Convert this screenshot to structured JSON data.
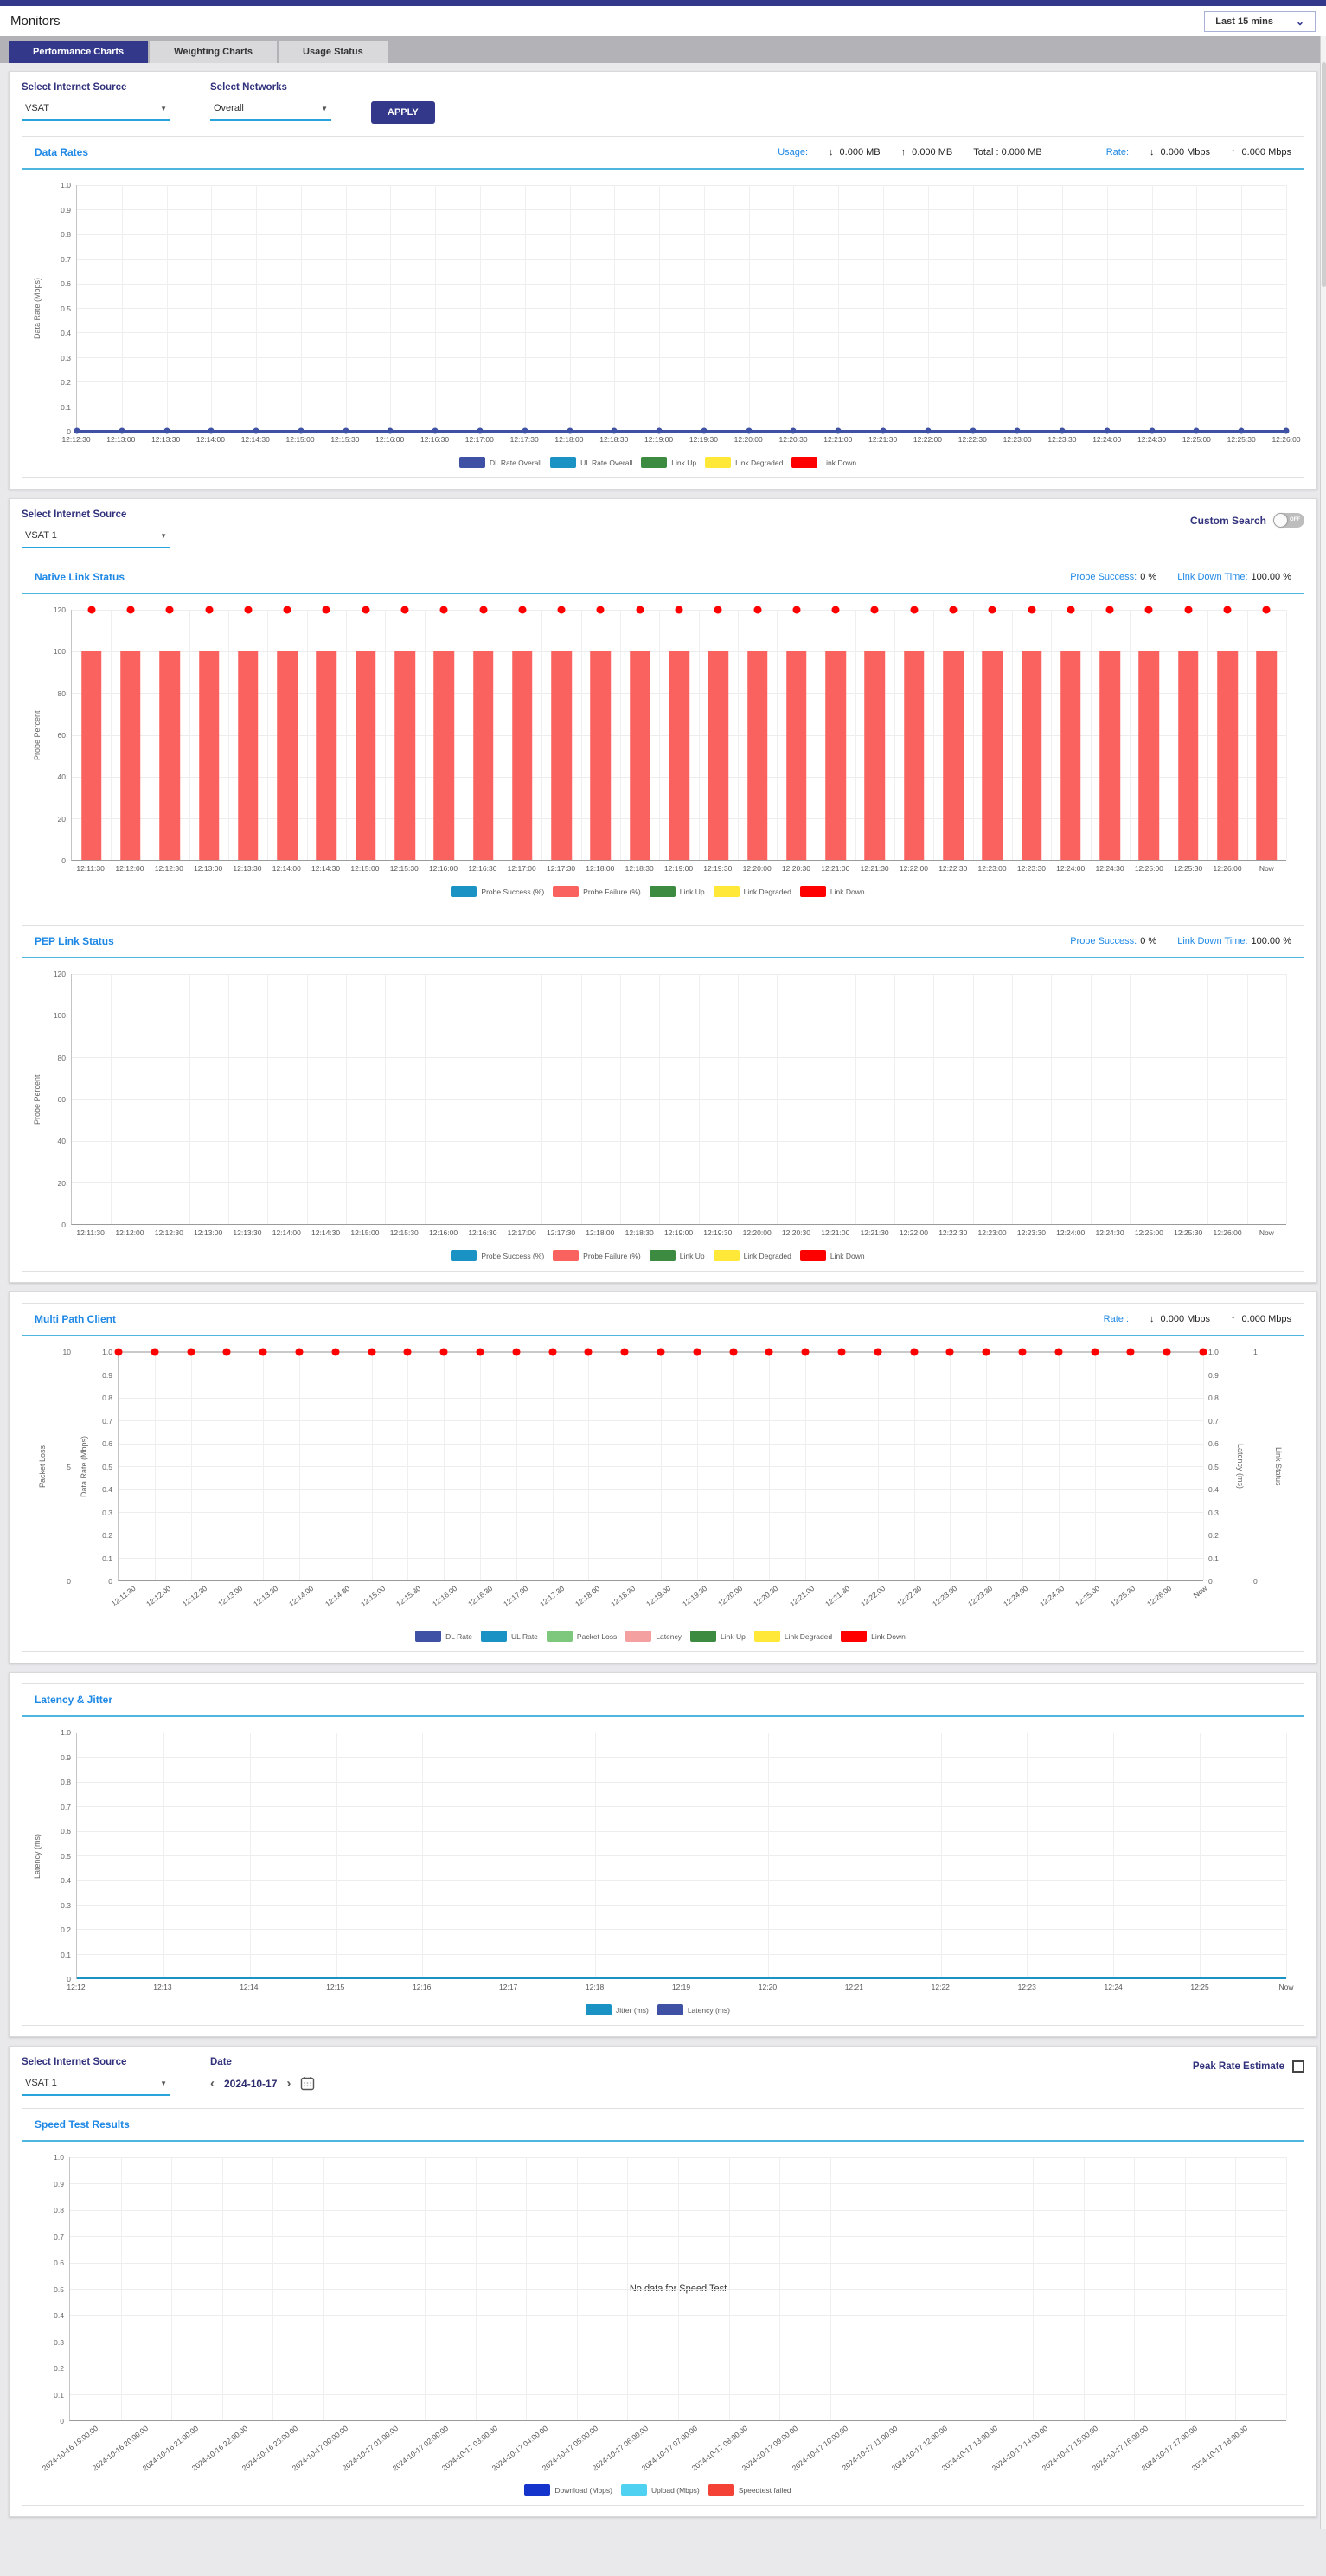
{
  "icons": {
    "down_arrow": "↓",
    "up_arrow": "↑",
    "dropdown": "▼",
    "chevron_left": "‹",
    "chevron_right": "›",
    "chevron_down": "⌄"
  },
  "header": {
    "title": "Monitors",
    "time_range": "Last 15 mins"
  },
  "tabs": [
    {
      "label": "Performance Charts",
      "active": true
    },
    {
      "label": "Weighting Charts",
      "active": false
    },
    {
      "label": "Usage Status",
      "active": false
    }
  ],
  "controls1": {
    "source_label": "Select Internet Source",
    "source_value": "VSAT",
    "networks_label": "Select Networks",
    "networks_value": "Overall",
    "apply_label": "APPLY"
  },
  "data_rates_stats": {
    "usage_label": "Usage:",
    "usage_down": "0.000 MB",
    "usage_up": "0.000 MB",
    "usage_total": "Total : 0.000 MB",
    "rate_label": "Rate:",
    "rate_down": "0.000 Mbps",
    "rate_up": "0.000 Mbps"
  },
  "controls2": {
    "source_label": "Select Internet Source",
    "source_value": "VSAT 1",
    "custom_search_label": "Custom Search",
    "custom_search_state": "OFF"
  },
  "native_link_stats": {
    "probe_label": "Probe Success:",
    "probe_value": "0 %",
    "down_label": "Link Down Time:",
    "down_value": "100.00 %"
  },
  "pep_link_stats": {
    "probe_label": "Probe Success:",
    "probe_value": "0 %",
    "down_label": "Link Down Time:",
    "down_value": "100.00 %"
  },
  "multi_path_stats": {
    "rate_label": "Rate :",
    "rate_down": "0.000 Mbps",
    "rate_up": "0.000 Mbps"
  },
  "controls3": {
    "source_label": "Select Internet Source",
    "source_value": "VSAT 1",
    "date_label": "Date",
    "date_value": "2024-10-17",
    "peak_label": "Peak Rate Estimate"
  },
  "colors": {
    "accent": "#33388b",
    "title_blue": "#1e88e5",
    "panel_border": "#4fb6e0"
  },
  "chart_data": [
    {
      "id": "data_rates",
      "type": "line",
      "title": "Data Rates",
      "ylabel": "Data Rate (Mbps)",
      "ylim": [
        0,
        1.0
      ],
      "grid": true,
      "legend_position": "bottom",
      "yticks": [
        "1.0",
        "0.9",
        "0.8",
        "0.7",
        "0.6",
        "0.5",
        "0.4",
        "0.3",
        "0.2",
        "0.1",
        "0"
      ],
      "x": [
        "12:12:30",
        "12:13:00",
        "12:13:30",
        "12:14:00",
        "12:14:30",
        "12:15:00",
        "12:15:30",
        "12:16:00",
        "12:16:30",
        "12:17:00",
        "12:17:30",
        "12:18:00",
        "12:18:30",
        "12:19:00",
        "12:19:30",
        "12:20:00",
        "12:20:30",
        "12:21:00",
        "12:21:30",
        "12:22:00",
        "12:22:30",
        "12:23:00",
        "12:23:30",
        "12:24:00",
        "12:24:30",
        "12:25:00",
        "12:25:30",
        "12:26:00"
      ],
      "series": [
        {
          "name": "DL Rate Overall",
          "color": "#3F51A5",
          "marker": "dot-line",
          "values": [
            0,
            0,
            0,
            0,
            0,
            0,
            0,
            0,
            0,
            0,
            0,
            0,
            0,
            0,
            0,
            0,
            0,
            0,
            0,
            0,
            0,
            0,
            0,
            0,
            0,
            0,
            0,
            0
          ]
        },
        {
          "name": "UL Rate Overall",
          "color": "#1A93C4",
          "marker": "line",
          "values": [
            0,
            0,
            0,
            0,
            0,
            0,
            0,
            0,
            0,
            0,
            0,
            0,
            0,
            0,
            0,
            0,
            0,
            0,
            0,
            0,
            0,
            0,
            0,
            0,
            0,
            0,
            0,
            0
          ]
        }
      ],
      "legend": [
        {
          "label": "DL Rate Overall",
          "color": "#3F51A5"
        },
        {
          "label": "UL Rate Overall",
          "color": "#1A93C4"
        },
        {
          "label": "Link Up",
          "color": "#3D8B40"
        },
        {
          "label": "Link Degraded",
          "color": "#FFE838"
        },
        {
          "label": "Link Down",
          "color": "#FF0000"
        }
      ]
    },
    {
      "id": "native_link_status",
      "type": "bar",
      "title": "Native Link Status",
      "ylabel": "Probe Percent",
      "ylim": [
        0,
        120
      ],
      "grid": true,
      "legend_position": "bottom",
      "yticks": [
        "120",
        "100",
        "80",
        "60",
        "40",
        "20",
        "0"
      ],
      "x": [
        "12:11:30",
        "12:12:00",
        "12:12:30",
        "12:13:00",
        "12:13:30",
        "12:14:00",
        "12:14:30",
        "12:15:00",
        "12:15:30",
        "12:16:00",
        "12:16:30",
        "12:17:00",
        "12:17:30",
        "12:18:00",
        "12:18:30",
        "12:19:00",
        "12:19:30",
        "12:20:00",
        "12:20:30",
        "12:21:00",
        "12:21:30",
        "12:22:00",
        "12:22:30",
        "12:23:00",
        "12:23:30",
        "12:24:00",
        "12:24:30",
        "12:25:00",
        "12:25:30",
        "12:26:00",
        "Now"
      ],
      "series": [
        {
          "name": "Probe Failure (%)",
          "color": "#F9625E",
          "marker": "bar",
          "values": [
            100,
            100,
            100,
            100,
            100,
            100,
            100,
            100,
            100,
            100,
            100,
            100,
            100,
            100,
            100,
            100,
            100,
            100,
            100,
            100,
            100,
            100,
            100,
            100,
            100,
            100,
            100,
            100,
            100,
            100,
            100
          ]
        },
        {
          "name": "Link Down",
          "color": "#FF0000",
          "marker": "dot",
          "values": [
            120,
            120,
            120,
            120,
            120,
            120,
            120,
            120,
            120,
            120,
            120,
            120,
            120,
            120,
            120,
            120,
            120,
            120,
            120,
            120,
            120,
            120,
            120,
            120,
            120,
            120,
            120,
            120,
            120,
            120,
            120
          ]
        }
      ],
      "legend": [
        {
          "label": "Probe Success (%)",
          "color": "#1A93C4"
        },
        {
          "label": "Probe Failure (%)",
          "color": "#F9625E"
        },
        {
          "label": "Link Up",
          "color": "#3D8B40"
        },
        {
          "label": "Link Degraded",
          "color": "#FFE838"
        },
        {
          "label": "Link Down",
          "color": "#FF0000"
        }
      ]
    },
    {
      "id": "pep_link_status",
      "type": "bar",
      "title": "PEP Link Status",
      "ylabel": "Probe Percent",
      "ylim": [
        0,
        120
      ],
      "grid": true,
      "legend_position": "bottom",
      "yticks": [
        "120",
        "100",
        "80",
        "60",
        "40",
        "20",
        "0"
      ],
      "x": [
        "12:11:30",
        "12:12:00",
        "12:12:30",
        "12:13:00",
        "12:13:30",
        "12:14:00",
        "12:14:30",
        "12:15:00",
        "12:15:30",
        "12:16:00",
        "12:16:30",
        "12:17:00",
        "12:17:30",
        "12:18:00",
        "12:18:30",
        "12:19:00",
        "12:19:30",
        "12:20:00",
        "12:20:30",
        "12:21:00",
        "12:21:30",
        "12:22:00",
        "12:22:30",
        "12:23:00",
        "12:23:30",
        "12:24:00",
        "12:24:30",
        "12:25:00",
        "12:25:30",
        "12:26:00",
        "Now"
      ],
      "series": [],
      "legend": [
        {
          "label": "Probe Success (%)",
          "color": "#1A93C4"
        },
        {
          "label": "Probe Failure (%)",
          "color": "#F9625E"
        },
        {
          "label": "Link Up",
          "color": "#3D8B40"
        },
        {
          "label": "Link Degraded",
          "color": "#FFE838"
        },
        {
          "label": "Link Down",
          "color": "#FF0000"
        }
      ]
    },
    {
      "id": "multi_path_client",
      "type": "scatter",
      "title": "Multi Path Client",
      "grid": true,
      "legend_position": "bottom",
      "axes": [
        {
          "label": "Packet Loss",
          "side": "left",
          "ticks": [
            "10",
            "5",
            "0"
          ]
        },
        {
          "label": "Data Rate (Mbps)",
          "side": "left",
          "ticks": [
            "1.0",
            "0.9",
            "0.8",
            "0.7",
            "0.6",
            "0.5",
            "0.4",
            "0.3",
            "0.2",
            "0.1",
            "0"
          ]
        },
        {
          "label": "Latency (ms)",
          "side": "right",
          "ticks": [
            "1.0",
            "0.9",
            "0.8",
            "0.7",
            "0.6",
            "0.5",
            "0.4",
            "0.3",
            "0.2",
            "0.1",
            "0"
          ]
        },
        {
          "label": "Link Status",
          "side": "right",
          "ticks": [
            "1",
            "0"
          ]
        }
      ],
      "x": [
        "12:11:30",
        "12:12:00",
        "12:12:30",
        "12:13:00",
        "12:13:30",
        "12:14:00",
        "12:14:30",
        "12:15:00",
        "12:15:30",
        "12:16:00",
        "12:16:30",
        "12:17:00",
        "12:17:30",
        "12:18:00",
        "12:18:30",
        "12:19:00",
        "12:19:30",
        "12:20:00",
        "12:20:30",
        "12:21:00",
        "12:21:30",
        "12:22:00",
        "12:22:30",
        "12:23:00",
        "12:23:30",
        "12:24:00",
        "12:24:30",
        "12:25:00",
        "12:25:30",
        "12:26:00",
        "Now"
      ],
      "series": [
        {
          "name": "Link Down",
          "color": "#FF0000",
          "marker": "dot",
          "axis": "Link Status",
          "values": [
            1,
            1,
            1,
            1,
            1,
            1,
            1,
            1,
            1,
            1,
            1,
            1,
            1,
            1,
            1,
            1,
            1,
            1,
            1,
            1,
            1,
            1,
            1,
            1,
            1,
            1,
            1,
            1,
            1,
            1,
            1
          ]
        }
      ],
      "legend": [
        {
          "label": "DL Rate",
          "color": "#3F51A5"
        },
        {
          "label": "UL Rate",
          "color": "#1A93C4"
        },
        {
          "label": "Packet Loss",
          "color": "#7EC87E"
        },
        {
          "label": "Latency",
          "color": "#F4A0A0"
        },
        {
          "label": "Link Up",
          "color": "#3D8B40"
        },
        {
          "label": "Link Degraded",
          "color": "#FFE838"
        },
        {
          "label": "Link Down",
          "color": "#FF0000"
        }
      ]
    },
    {
      "id": "latency_jitter",
      "type": "line",
      "title": "Latency & Jitter",
      "ylabel": "Latency (ms)",
      "ylim": [
        0,
        1.0
      ],
      "grid": true,
      "legend_position": "bottom",
      "yticks": [
        "1.0",
        "0.9",
        "0.8",
        "0.7",
        "0.6",
        "0.5",
        "0.4",
        "0.3",
        "0.2",
        "0.1",
        "0"
      ],
      "x": [
        "12:12",
        "12:13",
        "12:14",
        "12:15",
        "12:16",
        "12:17",
        "12:18",
        "12:19",
        "12:20",
        "12:21",
        "12:22",
        "12:23",
        "12:24",
        "12:25",
        "Now"
      ],
      "series": [
        {
          "name": "Jitter (ms)",
          "color": "#1A93C4",
          "marker": "line",
          "values": [
            0,
            0,
            0,
            0,
            0,
            0,
            0,
            0,
            0,
            0,
            0,
            0,
            0,
            0,
            0
          ]
        }
      ],
      "legend": [
        {
          "label": "Jitter (ms)",
          "color": "#1A93C4"
        },
        {
          "label": "Latency (ms)",
          "color": "#3F51A5"
        }
      ]
    },
    {
      "id": "speed_test_results",
      "type": "bar",
      "title": "Speed Test Results",
      "ylim": [
        0,
        1.0
      ],
      "grid": true,
      "legend_position": "bottom",
      "yticks": [
        "1.0",
        "0.9",
        "0.8",
        "0.7",
        "0.6",
        "0.5",
        "0.4",
        "0.3",
        "0.2",
        "0.1",
        "0"
      ],
      "annotation": "No data for Speed Test",
      "x": [
        "2024-10-16 19:00:00",
        "2024-10-16 20:00:00",
        "2024-10-16 21:00:00",
        "2024-10-16 22:00:00",
        "2024-10-16 23:00:00",
        "2024-10-17 00:00:00",
        "2024-10-17 01:00:00",
        "2024-10-17 02:00:00",
        "2024-10-17 03:00:00",
        "2024-10-17 04:00:00",
        "2024-10-17 05:00:00",
        "2024-10-17 06:00:00",
        "2024-10-17 07:00:00",
        "2024-10-17 08:00:00",
        "2024-10-17 09:00:00",
        "2024-10-17 10:00:00",
        "2024-10-17 11:00:00",
        "2024-10-17 12:00:00",
        "2024-10-17 13:00:00",
        "2024-10-17 14:00:00",
        "2024-10-17 15:00:00",
        "2024-10-17 16:00:00",
        "2024-10-17 17:00:00",
        "2024-10-17 18:00:00"
      ],
      "series": [],
      "legend": [
        {
          "label": "Download (Mbps)",
          "color": "#1434CC"
        },
        {
          "label": "Upload (Mbps)",
          "color": "#4FD2F2"
        },
        {
          "label": "Speedtest failed",
          "color": "#F44336"
        }
      ]
    }
  ]
}
